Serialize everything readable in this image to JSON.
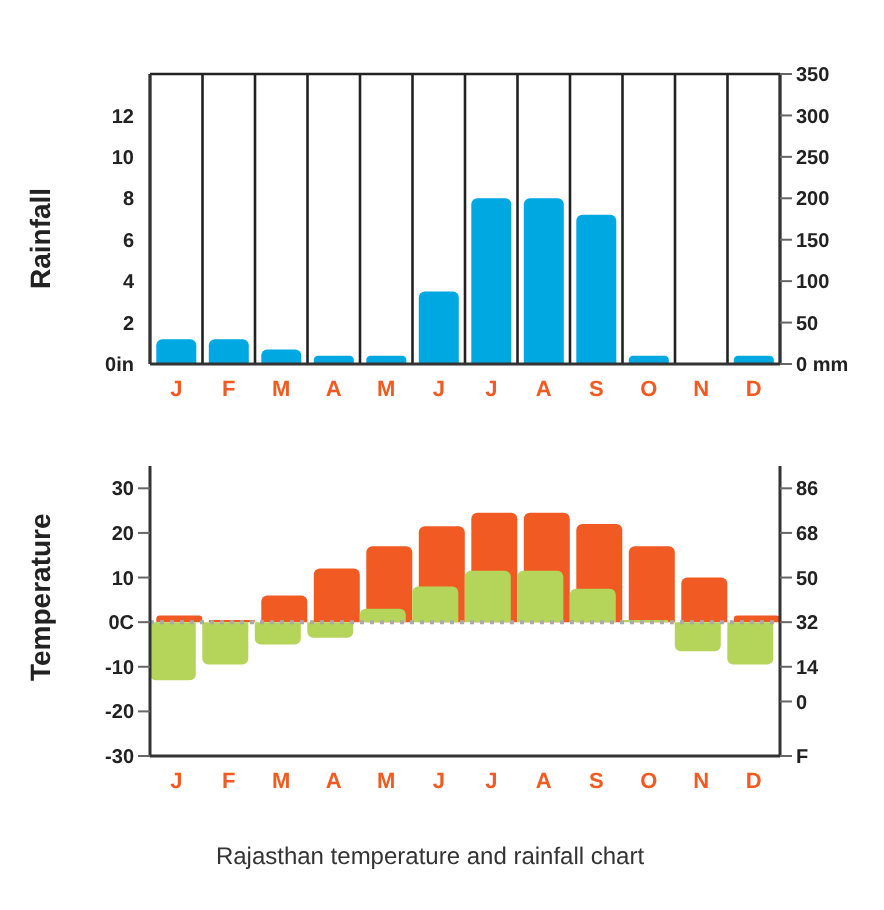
{
  "chart_data": [
    {
      "type": "bar",
      "ylabel": "Rainfall",
      "categories": [
        "J",
        "F",
        "M",
        "A",
        "M",
        "J",
        "J",
        "A",
        "S",
        "O",
        "N",
        "D"
      ],
      "series": [
        {
          "color": "#00a8e1",
          "values": [
            1.2,
            1.2,
            0.7,
            0.4,
            0.4,
            3.5,
            8,
            8,
            7.2,
            0.4,
            0,
            0.4
          ]
        }
      ],
      "ylim": [
        0,
        14
      ],
      "yticks": [
        {
          "value": 0,
          "label": "0in"
        },
        2,
        4,
        6,
        8,
        10,
        12
      ],
      "y2lim": [
        0,
        350
      ],
      "y2ticks": [
        {
          "value": 0,
          "label": "0 mm"
        },
        50,
        100,
        150,
        200,
        250,
        300,
        350
      ],
      "grid": true
    },
    {
      "type": "bar",
      "ylabel": "Temperature",
      "categories": [
        "J",
        "F",
        "M",
        "A",
        "M",
        "J",
        "J",
        "A",
        "S",
        "O",
        "N",
        "D"
      ],
      "series": [
        {
          "color": "#f15a22",
          "values": [
            1.5,
            0.5,
            6,
            12,
            17,
            21.5,
            24.5,
            24.5,
            22,
            17,
            10,
            1.5
          ]
        },
        {
          "color": "#b5d55a",
          "values": [
            -13,
            -9.5,
            -5,
            -3.5,
            3,
            8,
            11.5,
            11.5,
            7.5,
            0.5,
            -6.5,
            -9.5
          ]
        }
      ],
      "ylim": [
        -30,
        35
      ],
      "yticks": [
        -30,
        -20,
        -10,
        {
          "value": 0,
          "label": "0C"
        },
        10,
        20,
        30
      ],
      "y2lim": [
        -22,
        95
      ],
      "y2ticks": [
        {
          "value": -22,
          "label": "F"
        },
        0,
        14,
        32,
        50,
        68,
        86
      ],
      "ref_lines": [
        {
          "axis": "y",
          "value": 0,
          "color": "#aaaaaa",
          "line_style": "dotted"
        }
      ],
      "annotations": [
        "Rajasthan temperature and rainfall chart"
      ]
    }
  ]
}
